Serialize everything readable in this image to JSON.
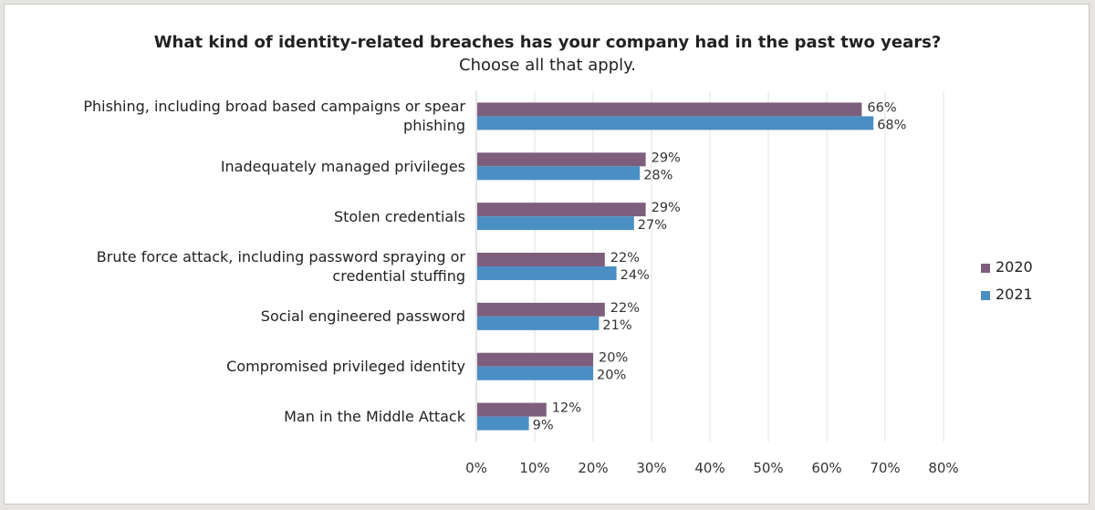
{
  "chart_data": {
    "type": "bar",
    "orientation": "horizontal",
    "title": "What kind of identity-related breaches has your company had in the past two years?",
    "subtitle": "Choose all that apply.",
    "categories": [
      "Phishing, including broad based campaigns or spear phishing",
      "Inadequately managed privileges",
      "Stolen credentials",
      "Brute force attack, including password spraying or credential stuffing",
      "Social engineered password",
      "Compromised privileged identity",
      "Man in the Middle Attack"
    ],
    "category_lines": [
      [
        "Phishing, including broad based campaigns or spear",
        "phishing"
      ],
      [
        "Inadequately managed privileges"
      ],
      [
        "Stolen credentials"
      ],
      [
        "Brute force attack, including password spraying or",
        "credential stuffing"
      ],
      [
        "Social engineered password"
      ],
      [
        "Compromised privileged identity"
      ],
      [
        "Man in the Middle Attack"
      ]
    ],
    "series": [
      {
        "name": "2020",
        "values": [
          66,
          29,
          29,
          22,
          22,
          20,
          12
        ],
        "labels": [
          "66%",
          "29%",
          "29%",
          "22%",
          "22%",
          "20%",
          "12%"
        ],
        "color": "#7d5f7d"
      },
      {
        "name": "2021",
        "values": [
          68,
          28,
          27,
          24,
          21,
          20,
          9
        ],
        "labels": [
          "68%",
          "28%",
          "27%",
          "24%",
          "21%",
          "20%",
          "9%"
        ],
        "color": "#4a8fc4"
      }
    ],
    "xlim": [
      0,
      80
    ],
    "xticks": [
      "0%",
      "10%",
      "20%",
      "30%",
      "40%",
      "50%",
      "60%",
      "70%",
      "80%"
    ],
    "grid": true,
    "legend_position": "right"
  }
}
